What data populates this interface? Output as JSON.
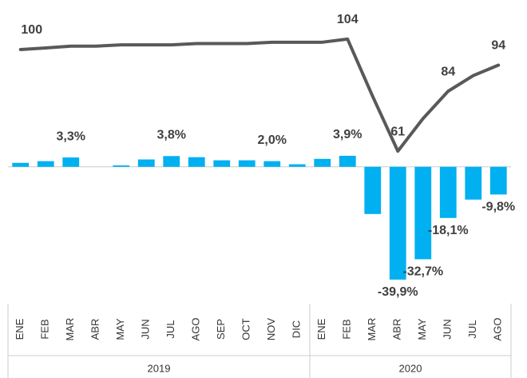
{
  "chart_data": {
    "type": "bar+line",
    "categories": [
      "ENE",
      "FEB",
      "MAR",
      "ABR",
      "MAY",
      "JUN",
      "JUL",
      "AGO",
      "SEP",
      "OCT",
      "NOV",
      "DIC",
      "ENE",
      "FEB",
      "MAR",
      "ABR",
      "MAY",
      "JUN",
      "JUL",
      "AGO"
    ],
    "x_groups": [
      {
        "label": "2019",
        "count": 12
      },
      {
        "label": "2020",
        "count": 8
      }
    ],
    "series": [
      {
        "type": "bar",
        "color": "#00b0f0",
        "values": [
          1.4,
          2.0,
          3.3,
          0,
          0.5,
          2.6,
          3.8,
          3.4,
          2.3,
          2.3,
          2.0,
          0.9,
          2.8,
          3.9,
          -16.7,
          -39.9,
          -32.7,
          -18.1,
          -11.6,
          -9.8
        ],
        "value_labels": [
          null,
          null,
          "3,3%",
          null,
          null,
          null,
          "3,8%",
          null,
          null,
          null,
          "2,0%",
          null,
          null,
          "3,9%",
          null,
          "-39,9%",
          "-32,7%",
          "-18,1%",
          null,
          "-9,8%"
        ]
      },
      {
        "type": "line",
        "axis": "y2",
        "color": "#595959",
        "values": [
          100,
          100.6,
          101.3,
          101.3,
          101.8,
          101.8,
          101.8,
          102.3,
          102.3,
          102.3,
          102.8,
          102.8,
          102.8,
          104,
          82,
          61,
          73.5,
          84,
          90,
          94
        ],
        "value_labels": [
          "100",
          null,
          null,
          null,
          null,
          null,
          null,
          null,
          null,
          null,
          null,
          null,
          null,
          "104",
          null,
          "61",
          null,
          "84",
          null,
          "94"
        ]
      }
    ],
    "ylim": [
      -47,
      59
    ],
    "y2lim": [
      4,
      119
    ]
  }
}
